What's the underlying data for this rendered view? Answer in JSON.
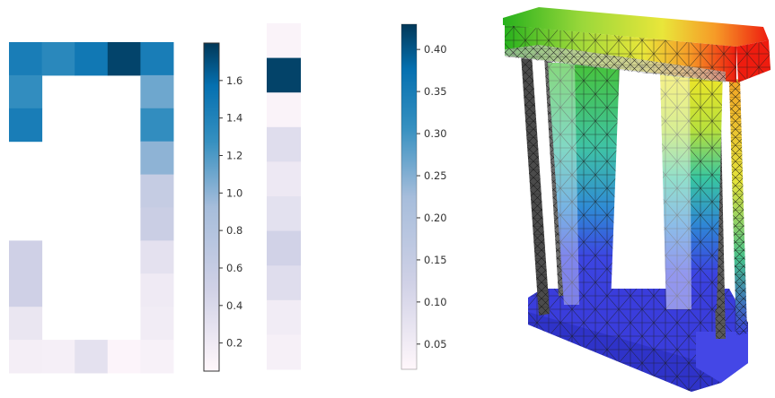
{
  "colorbar_1": {
    "vmin": 0.05,
    "vmax": 1.8,
    "ticks": [
      "0.2",
      "0.4",
      "0.6",
      "0.8",
      "1.0",
      "1.2",
      "1.4",
      "1.6"
    ]
  },
  "colorbar_2": {
    "vmin": 0.02,
    "vmax": 0.43,
    "ticks": [
      "0.05",
      "0.10",
      "0.15",
      "0.20",
      "0.25",
      "0.30",
      "0.35",
      "0.40"
    ]
  },
  "heatmap_1": {
    "columns": 5,
    "rows": 11,
    "values": [
      [
        1.45,
        1.35,
        1.5,
        1.75,
        1.45
      ],
      [
        1.3,
        null,
        null,
        null,
        1.1
      ],
      [
        1.45,
        null,
        null,
        null,
        1.3
      ],
      [
        null,
        null,
        null,
        null,
        1.0
      ],
      [
        null,
        null,
        null,
        null,
        0.6
      ],
      [
        null,
        null,
        null,
        null,
        0.55
      ],
      [
        0.5,
        null,
        null,
        null,
        0.3
      ],
      [
        0.5,
        null,
        null,
        null,
        0.2
      ],
      [
        0.25,
        null,
        null,
        null,
        0.18
      ],
      [
        0.15,
        0.14,
        0.3,
        0.08,
        0.12
      ],
      [
        null,
        null,
        null,
        null,
        null
      ]
    ]
  },
  "heatmap_2": {
    "rows": 10,
    "values": [
      0.03,
      0.42,
      0.03,
      0.09,
      0.06,
      0.08,
      0.12,
      0.09,
      0.05,
      0.04
    ]
  },
  "colors": {
    "background": "#ffffff",
    "cmap_low": "#fff7fb",
    "cmap_mid": "#74a9cf",
    "cmap_high": "#023858",
    "mesh_blue": "#3b3fe0",
    "mesh_red": "#ee1c0f",
    "mesh_green": "#55c638",
    "mesh_yellow": "#f5e31f"
  },
  "render_icon": "fea-mesh-deformation-render"
}
